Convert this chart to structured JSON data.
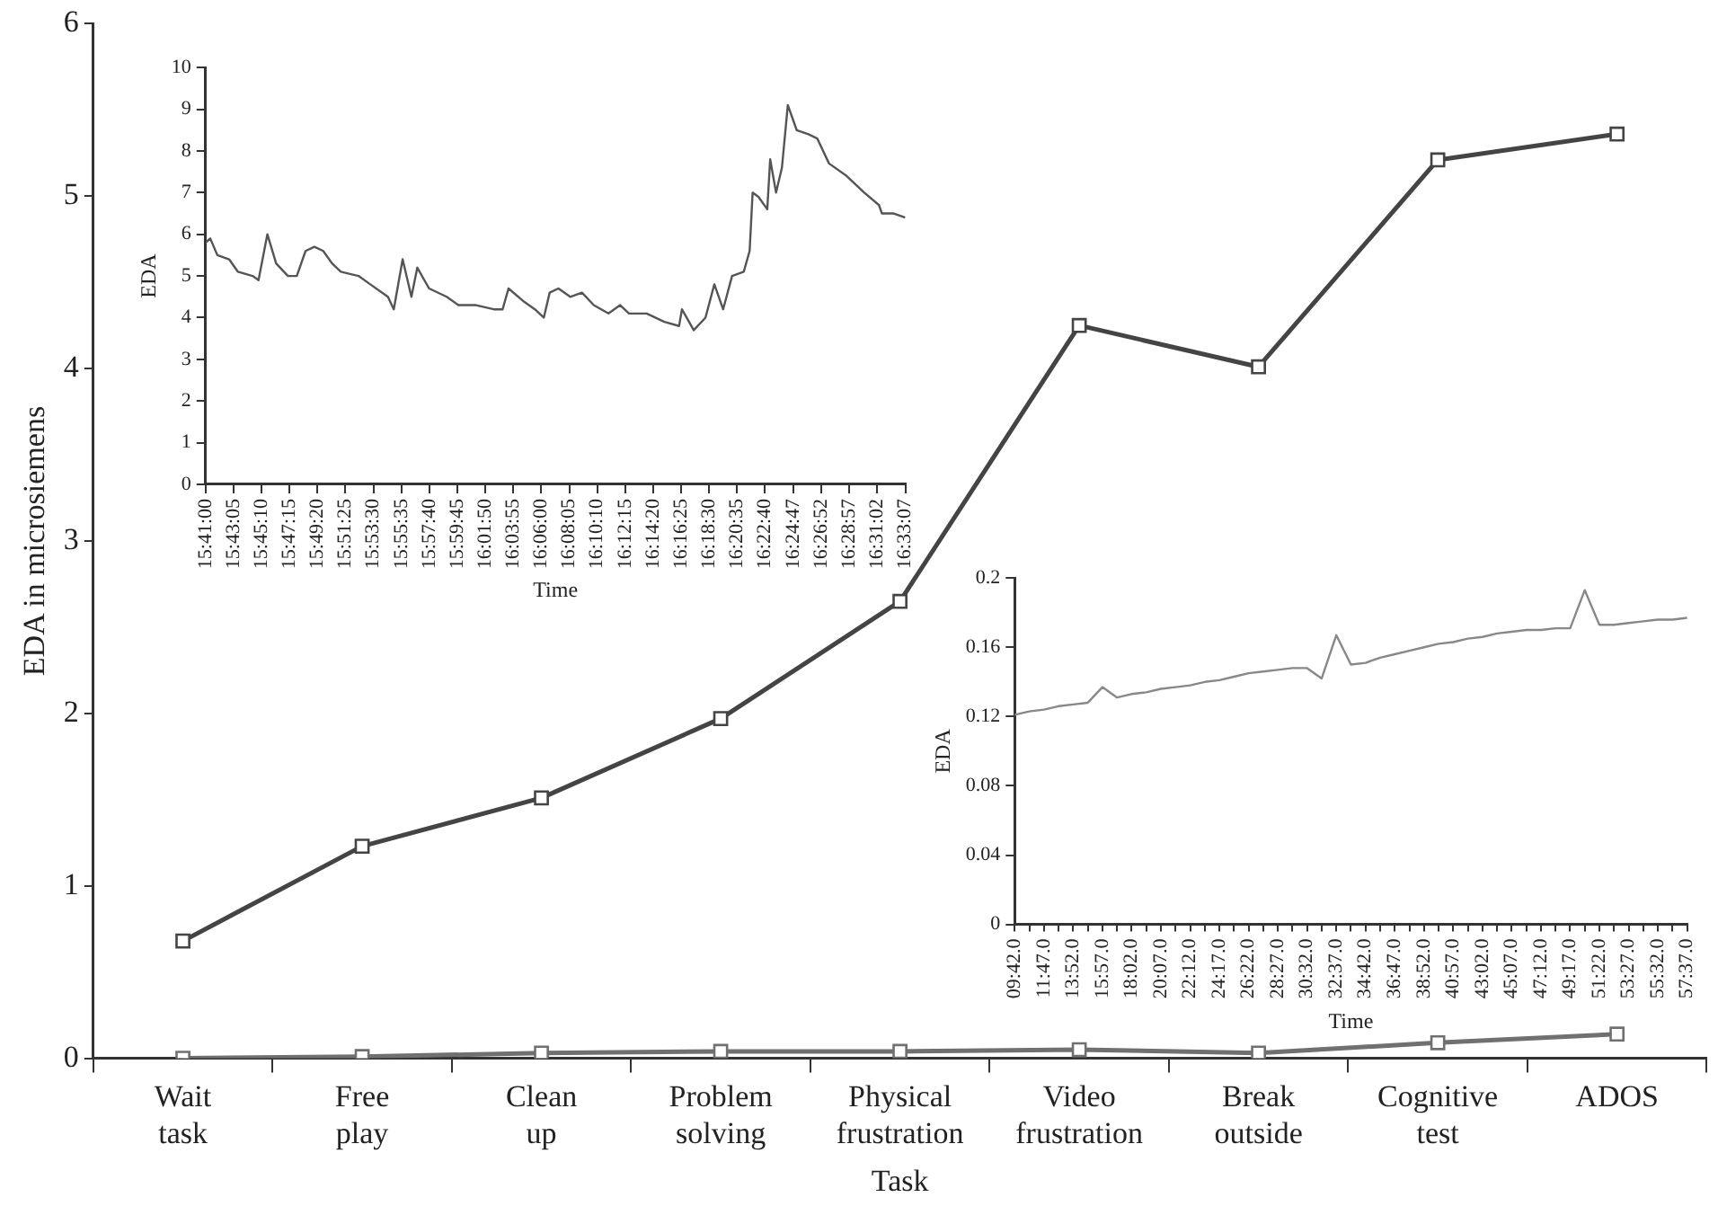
{
  "chart_data": [
    {
      "type": "line",
      "xlabel": "Task",
      "ylabel": "EDA in microsiemens",
      "marker": "square",
      "categories": [
        "Wait task",
        "Free play",
        "Clean up",
        "Problem solving",
        "Physical frustration",
        "Video frustration",
        "Break outside",
        "Cognitive test",
        "ADOS"
      ],
      "series": [
        {
          "color": "#444444",
          "values": [
            0.68,
            1.23,
            1.51,
            1.97,
            2.65,
            4.25,
            4.01,
            5.21,
            5.36
          ]
        },
        {
          "color": "#707070",
          "values": [
            0,
            0.01,
            0.03,
            0.04,
            0.04,
            0.05,
            0.03,
            0.09,
            0.14
          ]
        }
      ],
      "ylim": [
        0,
        6
      ],
      "yticks": [
        0,
        1,
        2,
        3,
        4,
        5,
        6
      ]
    },
    {
      "type": "line",
      "xlabel": "Time",
      "ylabel": "EDA",
      "marker": "none",
      "series": [
        {
          "color": "#555555",
          "x": [
            15.6833,
            15.6891,
            15.6979,
            15.7125,
            15.7235,
            15.7417,
            15.749,
            15.76,
            15.7709,
            15.7855,
            15.7965,
            15.8074,
            15.8184,
            15.8293,
            15.8403,
            15.8512,
            15.8731,
            15.8877,
            15.9096,
            15.9169,
            15.9279,
            15.9388,
            15.9461,
            15.9607,
            15.9826,
            15.9972,
            16.0191,
            16.041,
            16.052,
            16.0593,
            16.0775,
            16.0921,
            16.1031,
            16.1104,
            16.1213,
            16.1359,
            16.1505,
            16.1651,
            16.1834,
            16.1979,
            16.2089,
            16.2308,
            16.2527,
            16.271,
            16.2746,
            16.2892,
            16.3038,
            16.3148,
            16.3257,
            16.3368,
            16.3513,
            16.3586,
            16.3623,
            16.3695,
            16.3805,
            16.3841,
            16.3914,
            16.3987,
            16.406,
            16.417,
            16.4316,
            16.4425,
            16.4571,
            16.479,
            16.5009,
            16.5192,
            16.5228,
            16.5374,
            16.5519
          ],
          "values": [
            5.8,
            5.9,
            5.5,
            5.4,
            5.1,
            5.0,
            4.9,
            6.0,
            5.3,
            5.0,
            5.0,
            5.6,
            5.7,
            5.6,
            5.3,
            5.1,
            5.0,
            4.8,
            4.5,
            4.2,
            5.4,
            4.5,
            5.2,
            4.7,
            4.5,
            4.3,
            4.3,
            4.2,
            4.2,
            4.7,
            4.4,
            4.2,
            4.0,
            4.6,
            4.7,
            4.5,
            4.6,
            4.3,
            4.1,
            4.3,
            4.1,
            4.1,
            3.9,
            3.8,
            4.2,
            3.7,
            4.0,
            4.8,
            4.2,
            5.0,
            5.1,
            5.6,
            7.0,
            6.9,
            6.6,
            7.8,
            7.0,
            7.6,
            9.1,
            8.5,
            8.4,
            8.3,
            7.7,
            7.4,
            7.0,
            6.7,
            6.5,
            6.5,
            6.4
          ]
        }
      ],
      "xlim": [
        15.6833,
        16.5519
      ],
      "xticks": [
        {
          "value": 15.6833,
          "label": "15:41:00"
        },
        {
          "value": 15.7181,
          "label": "15:43:05"
        },
        {
          "value": 15.7528,
          "label": "15:45:10"
        },
        {
          "value": 15.7875,
          "label": "15:47:15"
        },
        {
          "value": 15.8222,
          "label": "15:49:20"
        },
        {
          "value": 15.8569,
          "label": "15:51:25"
        },
        {
          "value": 15.8917,
          "label": "15:53:30"
        },
        {
          "value": 15.9264,
          "label": "15:55:35"
        },
        {
          "value": 15.9611,
          "label": "15:57:40"
        },
        {
          "value": 15.9958,
          "label": "15:59:45"
        },
        {
          "value": 16.0306,
          "label": "16:01:50"
        },
        {
          "value": 16.0653,
          "label": "16:03:55"
        },
        {
          "value": 16.1,
          "label": "16:06:00"
        },
        {
          "value": 16.1347,
          "label": "16:08:05"
        },
        {
          "value": 16.1694,
          "label": "16:10:10"
        },
        {
          "value": 16.2042,
          "label": "16:12:15"
        },
        {
          "value": 16.2389,
          "label": "16:14:20"
        },
        {
          "value": 16.2736,
          "label": "16:16:25"
        },
        {
          "value": 16.3083,
          "label": "16:18:30"
        },
        {
          "value": 16.3431,
          "label": "16:20:35"
        },
        {
          "value": 16.3778,
          "label": "16:22:40"
        },
        {
          "value": 16.4131,
          "label": "16:24:47"
        },
        {
          "value": 16.4478,
          "label": "16:26:52"
        },
        {
          "value": 16.4825,
          "label": "16:28:57"
        },
        {
          "value": 16.5172,
          "label": "16:31:02"
        },
        {
          "value": 16.5519,
          "label": "16:33:07"
        }
      ],
      "ylim": [
        0,
        10
      ],
      "yticks": [
        0,
        1,
        2,
        3,
        4,
        5,
        6,
        7,
        8,
        9,
        10
      ]
    },
    {
      "type": "line",
      "xlabel": "Time",
      "ylabel": "EDA",
      "marker": "none",
      "series": [
        {
          "color": "#888888",
          "values": [
            0.121,
            0.123,
            0.124,
            0.126,
            0.127,
            0.128,
            0.137,
            0.131,
            0.133,
            0.134,
            0.136,
            0.137,
            0.138,
            0.14,
            0.141,
            0.143,
            0.145,
            0.146,
            0.147,
            0.148,
            0.148,
            0.142,
            0.167,
            0.15,
            0.151,
            0.154,
            0.156,
            0.158,
            0.16,
            0.162,
            0.163,
            0.165,
            0.166,
            0.168,
            0.169,
            0.17,
            0.17,
            0.171,
            0.171,
            0.193,
            0.173,
            0.173,
            0.174,
            0.175,
            0.176,
            0.176,
            0.177
          ]
        }
      ],
      "categories": [
        "09:42.0",
        null,
        "11:47.0",
        null,
        "13:52.0",
        null,
        "15:57.0",
        null,
        "18:02.0",
        null,
        "20:07.0",
        null,
        "22:12.0",
        null,
        "24:17.0",
        null,
        "26:22.0",
        null,
        "28:27.0",
        null,
        "30:32.0",
        null,
        "32:37.0",
        null,
        "34:42.0",
        null,
        "36:47.0",
        null,
        "38:52.0",
        null,
        "40:57.0",
        null,
        "43:02.0",
        null,
        "45:07.0",
        null,
        "47:12.0",
        null,
        "49:17.0",
        null,
        "51:22.0",
        null,
        "53:27.0",
        null,
        "55:32.0",
        null,
        "57:37.0"
      ],
      "ylim": [
        0,
        0.2
      ],
      "yticks": [
        0,
        0.04,
        0.08,
        0.12,
        0.16,
        0.2
      ]
    }
  ]
}
